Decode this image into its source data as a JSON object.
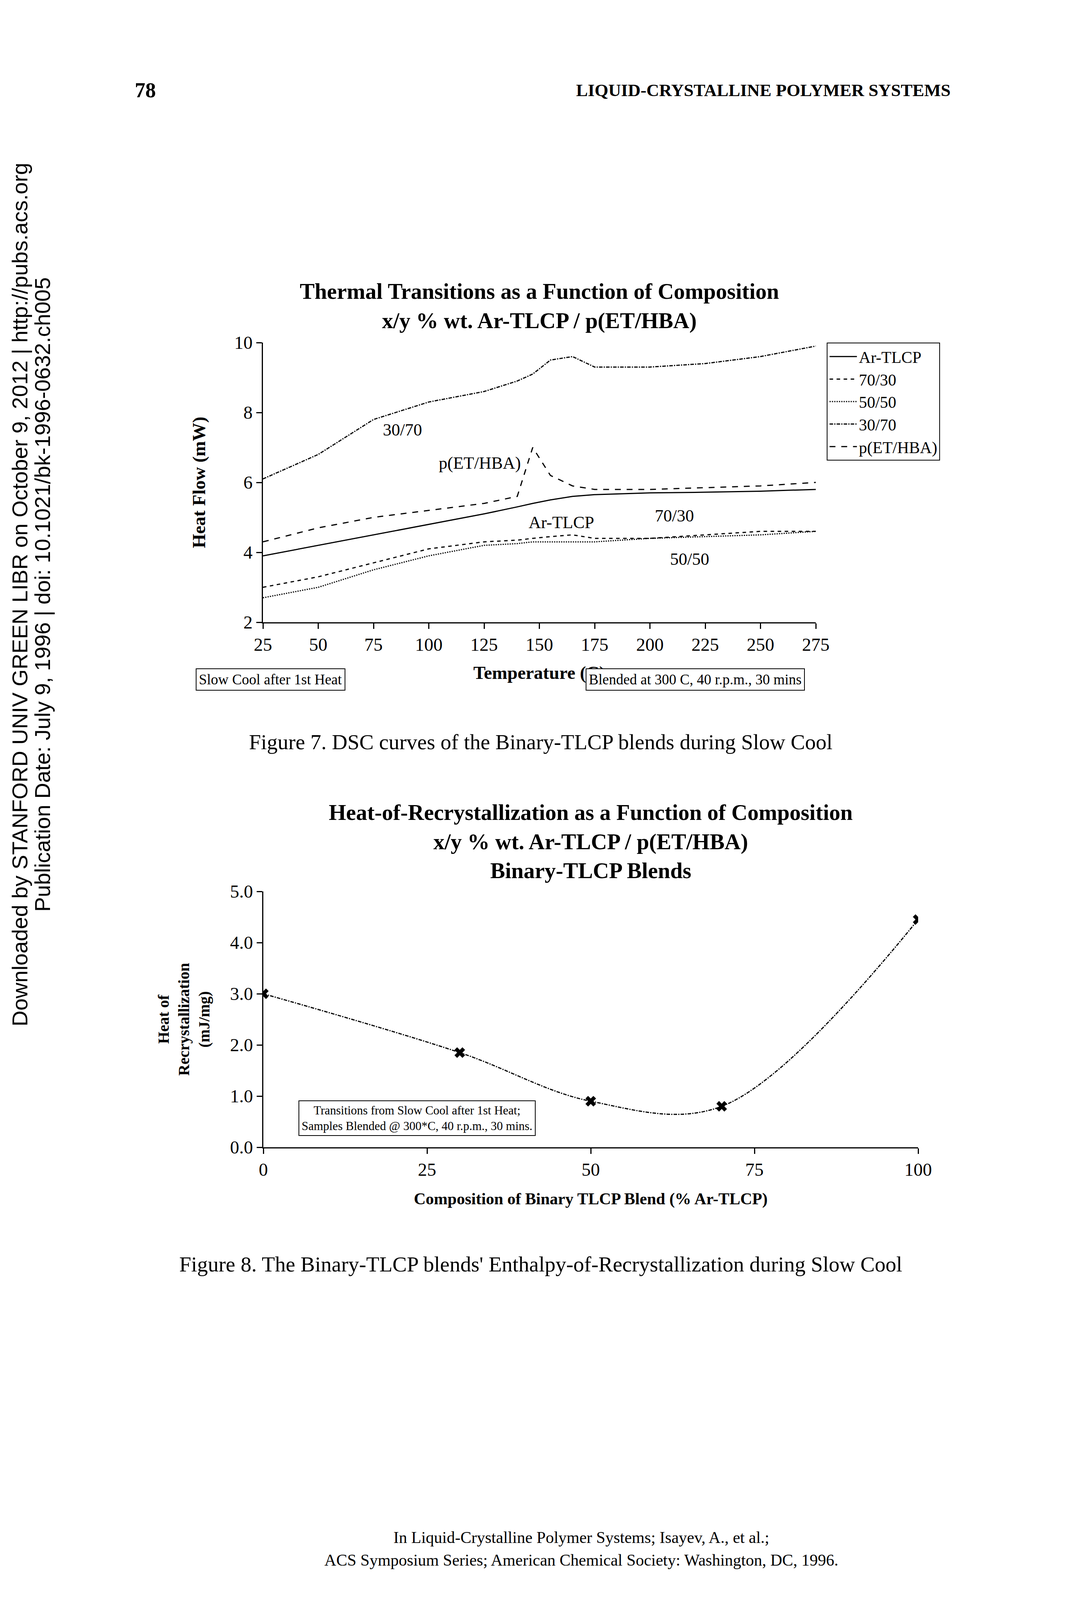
{
  "header": {
    "page_number": "78",
    "running_title": "LIQUID-CRYSTALLINE POLYMER SYSTEMS"
  },
  "side_note": [
    "Downloaded by STANFORD UNIV GREEN LIBR on October 9, 2012 | http://pubs.acs.org",
    "Publication Date: July 9, 1996 | doi: 10.1021/bk-1996-0632.ch005"
  ],
  "chart_data": [
    {
      "type": "line",
      "title": [
        "Thermal Transitions as a Function of Composition",
        "x/y % wt. Ar-TLCP / p(ET/HBA)"
      ],
      "x_label": "Temperature (C)",
      "y_label": "Heat Flow (mW)",
      "x": [
        25,
        50,
        75,
        100,
        125,
        140,
        147,
        155,
        165,
        175,
        200,
        225,
        250,
        275
      ],
      "series": [
        {
          "name": "Ar-TLCP",
          "color": "#000000",
          "line_style": "solid",
          "values": [
            3.9,
            4.2,
            4.5,
            4.8,
            5.1,
            5.3,
            5.4,
            5.5,
            5.6,
            5.65,
            5.7,
            5.72,
            5.75,
            5.8
          ]
        },
        {
          "name": "70/30",
          "color": "#000000",
          "line_style": "dash",
          "values": [
            3.0,
            3.3,
            3.7,
            4.1,
            4.3,
            4.35,
            4.4,
            4.45,
            4.5,
            4.4,
            4.4,
            4.5,
            4.6,
            4.6
          ]
        },
        {
          "name": "50/50",
          "color": "#000000",
          "line_style": "dot",
          "values": [
            2.7,
            3.0,
            3.5,
            3.9,
            4.2,
            4.25,
            4.3,
            4.3,
            4.3,
            4.3,
            4.4,
            4.45,
            4.5,
            4.6
          ]
        },
        {
          "name": "30/70",
          "color": "#000000",
          "line_style": "dashdot",
          "values": [
            6.1,
            6.8,
            7.8,
            8.3,
            8.6,
            8.9,
            9.1,
            9.5,
            9.6,
            9.3,
            9.3,
            9.4,
            9.6,
            9.9
          ]
        },
        {
          "name": "p(ET/HBA)",
          "color": "#000000",
          "line_style": "longdash",
          "values": [
            4.3,
            4.7,
            5.0,
            5.2,
            5.4,
            5.6,
            7.0,
            6.2,
            5.9,
            5.8,
            5.8,
            5.85,
            5.9,
            6.0
          ]
        }
      ],
      "annotations": [
        {
          "text": "30/70",
          "x": 88,
          "y": 7.5
        },
        {
          "text": "p(ET/HBA)",
          "x": 123,
          "y": 6.55
        },
        {
          "text": "Ar-TLCP",
          "x": 160,
          "y": 4.85
        },
        {
          "text": "70/30",
          "x": 211,
          "y": 5.05
        },
        {
          "text": "50/50",
          "x": 218,
          "y": 3.8
        }
      ],
      "notes": [
        "Slow Cool after 1st Heat",
        "Blended at 300 C, 40 r.p.m., 30 mins"
      ],
      "xlim": [
        25,
        275
      ],
      "xticks": [
        25,
        50,
        75,
        100,
        125,
        150,
        175,
        200,
        225,
        250,
        275
      ],
      "ylim": [
        2,
        10
      ],
      "yticks": [
        2,
        4,
        6,
        8,
        10
      ],
      "legend": "right",
      "grid": false
    },
    {
      "type": "scatter",
      "title": [
        "Heat-of-Recrystallization as a Function of Composition",
        "x/y % wt. Ar-TLCP / p(ET/HBA)",
        "Binary-TLCP Blends"
      ],
      "x_label": "Composition of Binary TLCP Blend (% Ar-TLCP)",
      "y_label": [
        "Heat of",
        "Recrystallization",
        "(mJ/mg)"
      ],
      "x": [
        0,
        30,
        50,
        70,
        100
      ],
      "values": [
        3.0,
        1.85,
        0.9,
        0.8,
        4.45
      ],
      "color": "#000000",
      "marker": "x",
      "line_style": "dashdot",
      "notes": [
        {
          "text": [
            "Transitions from Slow Cool after 1st Heat;",
            "Samples Blended @ 300*C, 40 r.p.m., 30 mins."
          ],
          "x": 23.5,
          "y": 0.57
        }
      ],
      "xlim": [
        0,
        100
      ],
      "xticks": [
        0,
        25,
        50,
        75,
        100
      ],
      "ylim": [
        0,
        5
      ],
      "yticks": [
        {
          "value": 0,
          "label": "0.0"
        },
        {
          "value": 1,
          "label": "1.0"
        },
        {
          "value": 2,
          "label": "2.0"
        },
        {
          "value": 3,
          "label": "3.0"
        },
        {
          "value": 4,
          "label": "4.0"
        },
        {
          "value": 5,
          "label": "5.0"
        }
      ],
      "grid": false
    }
  ],
  "captions": [
    "Figure 7. DSC curves of the Binary-TLCP blends during Slow Cool",
    "Figure 8. The Binary-TLCP blends' Enthalpy-of-Recrystallization during Slow Cool"
  ],
  "footer": [
    "In Liquid-Crystalline Polymer Systems; Isayev, A., et al.;",
    "ACS Symposium Series; American Chemical Society: Washington, DC, 1996."
  ]
}
